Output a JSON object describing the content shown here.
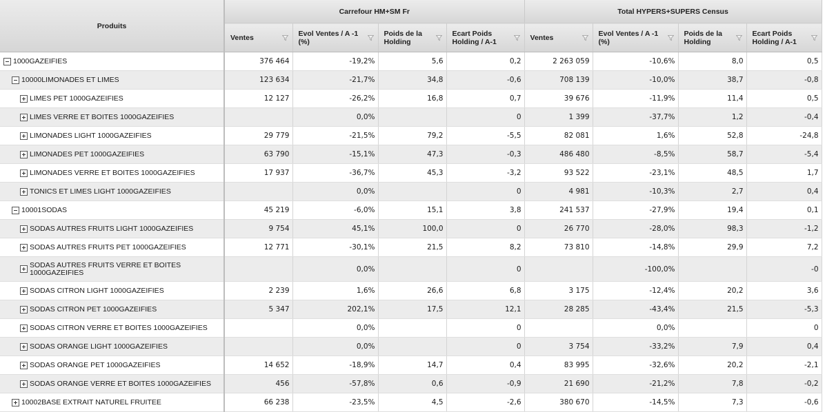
{
  "header": {
    "products_label": "Produits",
    "groups": [
      {
        "label": "Carrefour HM+SM Fr"
      },
      {
        "label": "Total HYPERS+SUPERS Census"
      }
    ],
    "columns": [
      {
        "label": "Ventes"
      },
      {
        "label": "Evol Ventes / A -1 (%)"
      },
      {
        "label": "Poids de la Holding"
      },
      {
        "label": "Ecart Poids Holding / A-1"
      },
      {
        "label": "Ventes"
      },
      {
        "label": "Evol Ventes / A -1 (%)"
      },
      {
        "label": "Poids de la Holding"
      },
      {
        "label": "Ecart Poids Holding / A-1"
      }
    ]
  },
  "rows": [
    {
      "name": "1000GAZEIFIES",
      "level": 0,
      "toggle": "minus",
      "values": [
        "376 464",
        "-19,2%",
        "5,6",
        "0,2",
        "2 263 059",
        "-10,6%",
        "8,0",
        "0,5"
      ]
    },
    {
      "name": "10000LIMONADES ET LIMES",
      "level": 1,
      "toggle": "minus",
      "values": [
        "123 634",
        "-21,7%",
        "34,8",
        "-0,6",
        "708 139",
        "-10,0%",
        "38,7",
        "-0,8"
      ]
    },
    {
      "name": "LIMES PET 1000GAZEIFIES",
      "level": 2,
      "toggle": "plus",
      "values": [
        "12 127",
        "-26,2%",
        "16,8",
        "0,7",
        "39 676",
        "-11,9%",
        "11,4",
        "0,5"
      ]
    },
    {
      "name": "LIMES VERRE ET BOITES 1000GAZEIFIES",
      "level": 2,
      "toggle": "plus",
      "values": [
        "",
        "0,0%",
        "",
        "0",
        "1 399",
        "-37,7%",
        "1,2",
        "-0,4"
      ]
    },
    {
      "name": "LIMONADES LIGHT 1000GAZEIFIES",
      "level": 2,
      "toggle": "plus",
      "values": [
        "29 779",
        "-21,5%",
        "79,2",
        "-5,5",
        "82 081",
        "1,6%",
        "52,8",
        "-24,8"
      ]
    },
    {
      "name": "LIMONADES PET 1000GAZEIFIES",
      "level": 2,
      "toggle": "plus",
      "values": [
        "63 790",
        "-15,1%",
        "47,3",
        "-0,3",
        "486 480",
        "-8,5%",
        "58,7",
        "-5,4"
      ]
    },
    {
      "name": "LIMONADES VERRE ET BOITES 1000GAZEIFIES",
      "level": 2,
      "toggle": "plus",
      "values": [
        "17 937",
        "-36,7%",
        "45,3",
        "-3,2",
        "93 522",
        "-23,1%",
        "48,5",
        "1,7"
      ]
    },
    {
      "name": "TONICS ET LIMES LIGHT 1000GAZEIFIES",
      "level": 2,
      "toggle": "plus",
      "values": [
        "",
        "0,0%",
        "",
        "0",
        "4 981",
        "-10,3%",
        "2,7",
        "0,4"
      ]
    },
    {
      "name": "10001SODAS",
      "level": 1,
      "toggle": "minus",
      "values": [
        "45 219",
        "-6,0%",
        "15,1",
        "3,8",
        "241 537",
        "-27,9%",
        "19,4",
        "0,1"
      ]
    },
    {
      "name": "SODAS AUTRES FRUITS LIGHT 1000GAZEIFIES",
      "level": 2,
      "toggle": "plus",
      "values": [
        "9 754",
        "45,1%",
        "100,0",
        "0",
        "26 770",
        "-28,0%",
        "98,3",
        "-1,2"
      ]
    },
    {
      "name": "SODAS AUTRES FRUITS PET 1000GAZEIFIES",
      "level": 2,
      "toggle": "plus",
      "values": [
        "12 771",
        "-30,1%",
        "21,5",
        "8,2",
        "73 810",
        "-14,8%",
        "29,9",
        "7,2"
      ]
    },
    {
      "name": "SODAS AUTRES FRUITS VERRE ET BOITES 1000GAZEIFIES",
      "level": 2,
      "toggle": "plus",
      "tall": true,
      "values": [
        "",
        "0,0%",
        "",
        "0",
        "",
        "-100,0%",
        "",
        "-0"
      ]
    },
    {
      "name": "SODAS CITRON LIGHT 1000GAZEIFIES",
      "level": 2,
      "toggle": "plus",
      "values": [
        "2 239",
        "1,6%",
        "26,6",
        "6,8",
        "3 175",
        "-12,4%",
        "20,2",
        "3,6"
      ]
    },
    {
      "name": "SODAS CITRON PET 1000GAZEIFIES",
      "level": 2,
      "toggle": "plus",
      "values": [
        "5 347",
        "202,1%",
        "17,5",
        "12,1",
        "28 285",
        "-43,4%",
        "21,5",
        "-5,3"
      ]
    },
    {
      "name": "SODAS CITRON VERRE ET BOITES 1000GAZEIFIES",
      "level": 2,
      "toggle": "plus",
      "values": [
        "",
        "0,0%",
        "",
        "0",
        "",
        "0,0%",
        "",
        "0"
      ]
    },
    {
      "name": "SODAS ORANGE LIGHT 1000GAZEIFIES",
      "level": 2,
      "toggle": "plus",
      "values": [
        "",
        "0,0%",
        "",
        "0",
        "3 754",
        "-33,2%",
        "7,9",
        "0,4"
      ]
    },
    {
      "name": "SODAS ORANGE PET 1000GAZEIFIES",
      "level": 2,
      "toggle": "plus",
      "values": [
        "14 652",
        "-18,9%",
        "14,7",
        "0,4",
        "83 995",
        "-32,6%",
        "20,2",
        "-2,1"
      ]
    },
    {
      "name": "SODAS ORANGE VERRE ET BOITES 1000GAZEIFIES",
      "level": 2,
      "toggle": "plus",
      "values": [
        "456",
        "-57,8%",
        "0,6",
        "-0,9",
        "21 690",
        "-21,2%",
        "7,8",
        "-0,2"
      ]
    },
    {
      "name": "10002BASE EXTRAIT NATUREL FRUITEE",
      "level": 1,
      "toggle": "plus",
      "values": [
        "66 238",
        "-23,5%",
        "4,5",
        "-2,6",
        "380 670",
        "-14,5%",
        "7,3",
        "-0,6"
      ]
    }
  ]
}
